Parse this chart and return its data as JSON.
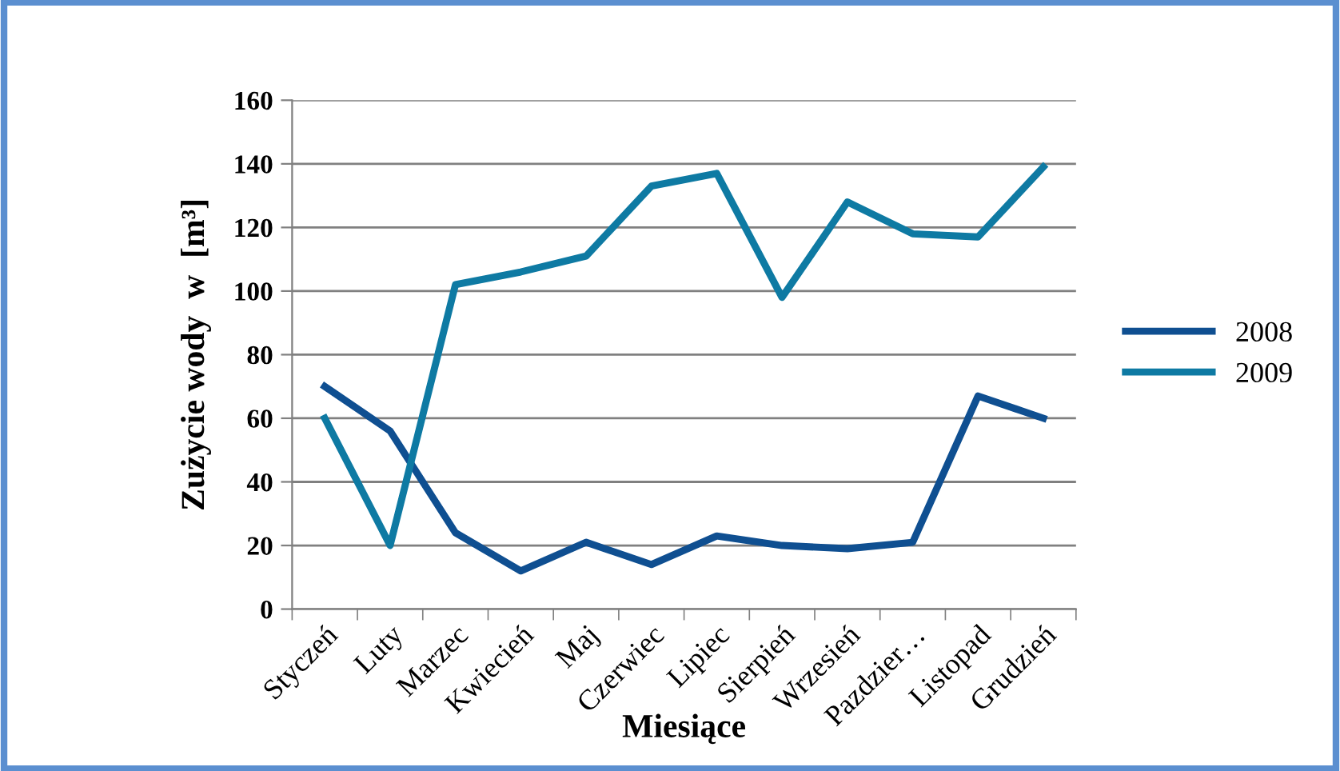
{
  "chart_data": {
    "type": "line",
    "xlabel": "Miesiące",
    "ylabel": "Zużycie wody  w  [m³]",
    "categories": [
      "Styczeń",
      "Luty",
      "Marzec",
      "Kwiecień",
      "Maj",
      "Czerwiec",
      "Lipiec",
      "Sierpień",
      "Wrzesień",
      "Pazdzier…",
      "Listopad",
      "Grudzień"
    ],
    "series": [
      {
        "name": "2008",
        "color": "#0f4f91",
        "values": [
          70,
          56,
          24,
          12,
          21,
          14,
          23,
          20,
          19,
          21,
          67,
          60
        ]
      },
      {
        "name": "2009",
        "color": "#0e7aa3",
        "values": [
          60,
          20,
          102,
          106,
          111,
          133,
          137,
          98,
          128,
          118,
          117,
          139
        ]
      }
    ],
    "ylim": [
      0,
      160
    ],
    "yticks": [
      0,
      20,
      40,
      60,
      80,
      100,
      120,
      140,
      160
    ],
    "grid": "y",
    "legend": "right",
    "marker": "none",
    "line_style": "solid"
  }
}
